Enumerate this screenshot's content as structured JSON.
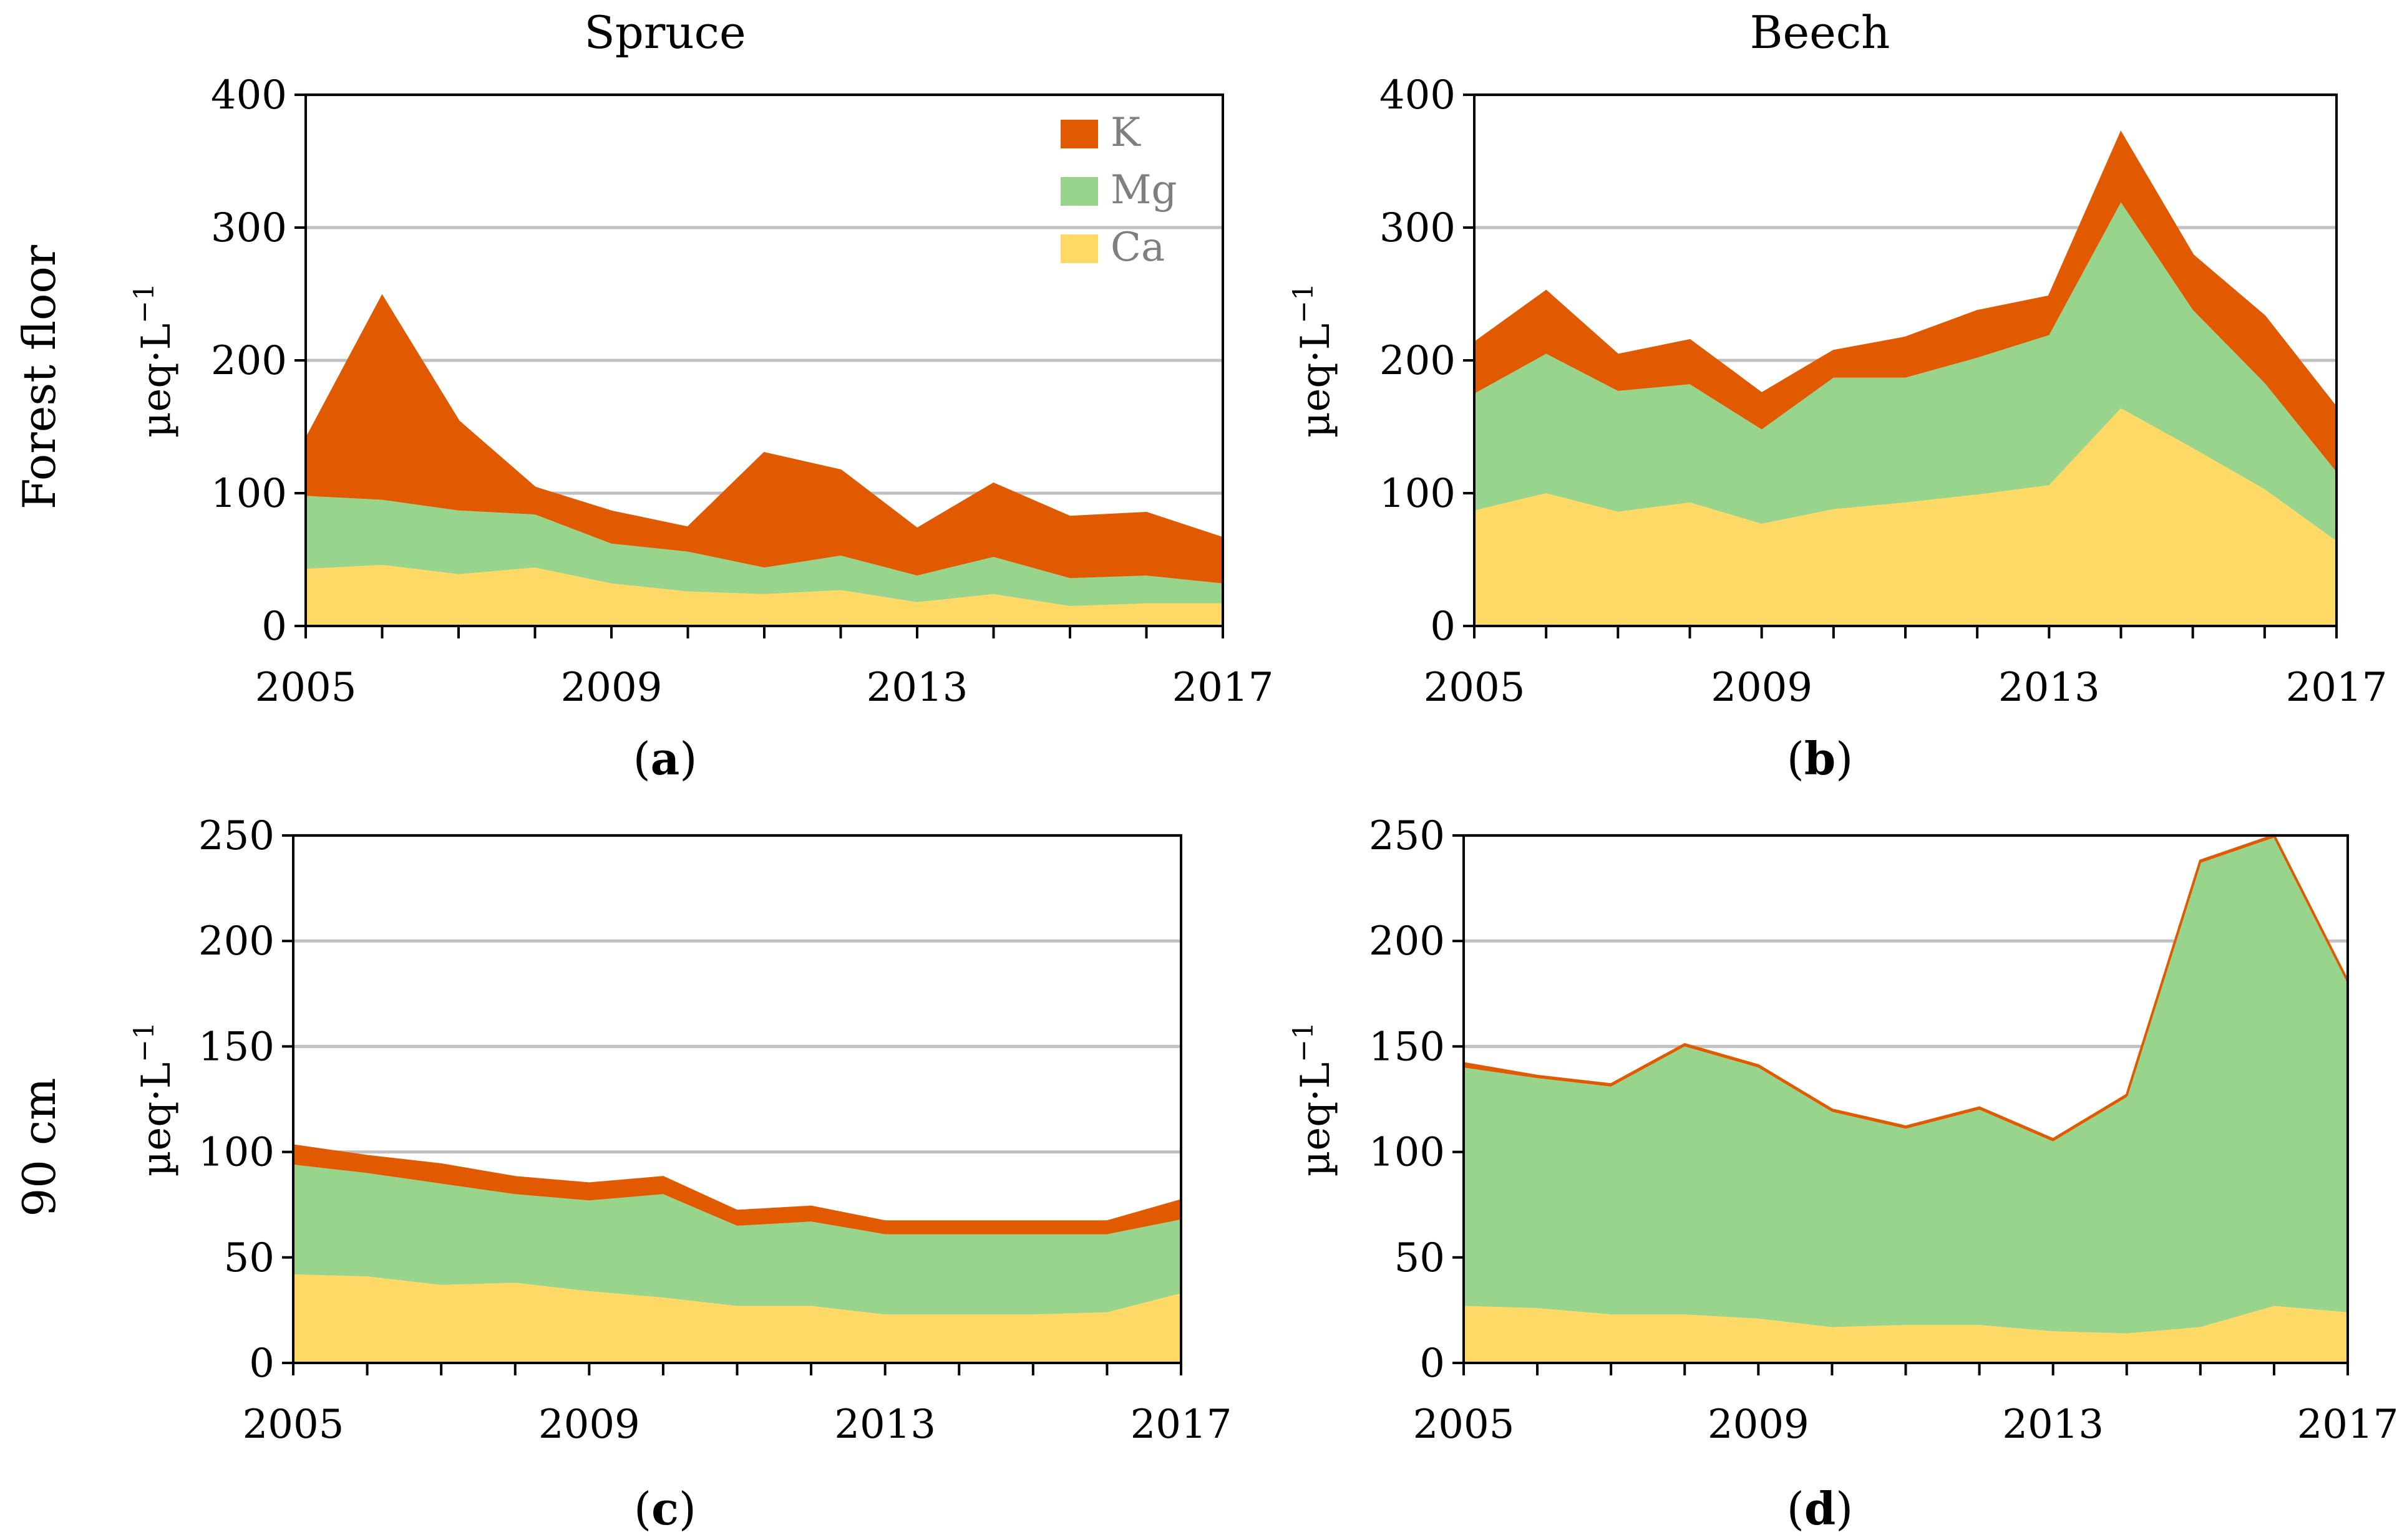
{
  "figure": {
    "column_titles": [
      "Spruce",
      "Beech"
    ],
    "row_titles": [
      "Forest floor",
      "90 cm"
    ],
    "ylabel_main": "µeq·L",
    "ylabel_sup": "−1"
  },
  "colors": {
    "K": "#e15a00",
    "Mg": "#98d48b",
    "Ca": "#ffd966",
    "grid": "#c0c0c0",
    "axis": "#000000"
  },
  "chart_data": [
    {
      "panel": "a",
      "type": "area",
      "stacked": true,
      "title": "Spruce",
      "row": "Forest floor",
      "xlabel": "",
      "ylabel": "µeq·L−1",
      "x": [
        2005,
        2006,
        2007,
        2008,
        2009,
        2010,
        2011,
        2012,
        2013,
        2014,
        2015,
        2016,
        2017
      ],
      "xticks": [
        2005,
        2009,
        2013,
        2017
      ],
      "ylim": [
        0,
        400
      ],
      "yticks": [
        0,
        100,
        200,
        300,
        400
      ],
      "legend": {
        "placement": "top-right",
        "entries": [
          "K",
          "Mg",
          "Ca"
        ]
      },
      "series": [
        {
          "name": "Ca",
          "values": [
            43,
            46,
            39,
            44,
            32,
            26,
            24,
            27,
            18,
            24,
            15,
            17,
            17
          ]
        },
        {
          "name": "Mg",
          "values": [
            55,
            49,
            48,
            40,
            30,
            30,
            20,
            26,
            20,
            28,
            21,
            21,
            15
          ]
        },
        {
          "name": "K",
          "values": [
            42,
            153,
            67,
            20,
            24,
            18,
            86,
            64,
            35,
            55,
            46,
            47,
            34
          ]
        }
      ]
    },
    {
      "panel": "b",
      "type": "area",
      "stacked": true,
      "title": "Beech",
      "row": "Forest floor",
      "xlabel": "",
      "ylabel": "µeq·L−1",
      "x": [
        2005,
        2006,
        2007,
        2008,
        2009,
        2010,
        2011,
        2012,
        2013,
        2014,
        2015,
        2016,
        2017
      ],
      "xticks": [
        2005,
        2009,
        2013,
        2017
      ],
      "ylim": [
        0,
        400
      ],
      "yticks": [
        0,
        100,
        200,
        300,
        400
      ],
      "series": [
        {
          "name": "Ca",
          "values": [
            87,
            100,
            86,
            93,
            77,
            88,
            93,
            99,
            106,
            164,
            134,
            103,
            64
          ]
        },
        {
          "name": "Mg",
          "values": [
            88,
            105,
            91,
            89,
            71,
            99,
            94,
            103,
            113,
            155,
            104,
            80,
            52
          ]
        },
        {
          "name": "K",
          "values": [
            38,
            47,
            27,
            33,
            27,
            20,
            30,
            35,
            29,
            52,
            41,
            50,
            48
          ]
        }
      ]
    },
    {
      "panel": "c",
      "type": "area",
      "stacked": true,
      "title": "",
      "row": "90 cm",
      "xlabel": "",
      "ylabel": "µeq·L−1",
      "x": [
        2005,
        2006,
        2007,
        2008,
        2009,
        2010,
        2011,
        2012,
        2013,
        2014,
        2015,
        2016,
        2017
      ],
      "xticks": [
        2005,
        2009,
        2013,
        2017
      ],
      "ylim": [
        0,
        250
      ],
      "yticks": [
        0,
        50,
        100,
        150,
        200,
        250
      ],
      "series": [
        {
          "name": "Ca",
          "values": [
            42,
            41,
            37,
            38,
            34,
            31,
            27,
            27,
            23,
            23,
            23,
            24,
            33
          ]
        },
        {
          "name": "Mg",
          "values": [
            52,
            49,
            48,
            42,
            43,
            49,
            38,
            40,
            38,
            38,
            38,
            37,
            35
          ]
        },
        {
          "name": "K",
          "values": [
            9,
            8,
            9,
            8,
            8,
            8,
            7,
            7,
            6,
            6,
            6,
            6,
            9
          ]
        }
      ]
    },
    {
      "panel": "d",
      "type": "area",
      "stacked": true,
      "title": "",
      "row": "90 cm",
      "xlabel": "",
      "ylabel": "µeq·L−1",
      "x": [
        2005,
        2006,
        2007,
        2008,
        2009,
        2010,
        2011,
        2012,
        2013,
        2014,
        2015,
        2016,
        2017
      ],
      "xticks": [
        2005,
        2009,
        2013,
        2017
      ],
      "ylim": [
        0,
        250
      ],
      "yticks": [
        0,
        50,
        100,
        150,
        200,
        250
      ],
      "series": [
        {
          "name": "Ca",
          "values": [
            27,
            26,
            23,
            23,
            21,
            17,
            18,
            18,
            15,
            14,
            17,
            27,
            24
          ]
        },
        {
          "name": "Mg",
          "values": [
            113,
            109,
            108,
            127,
            119,
            102,
            93,
            102,
            90,
            112,
            220,
            222,
            156
          ]
        },
        {
          "name": "K",
          "values": [
            2,
            1,
            1,
            1,
            1,
            1,
            1,
            1,
            1,
            1,
            1,
            1,
            1
          ]
        }
      ]
    }
  ]
}
